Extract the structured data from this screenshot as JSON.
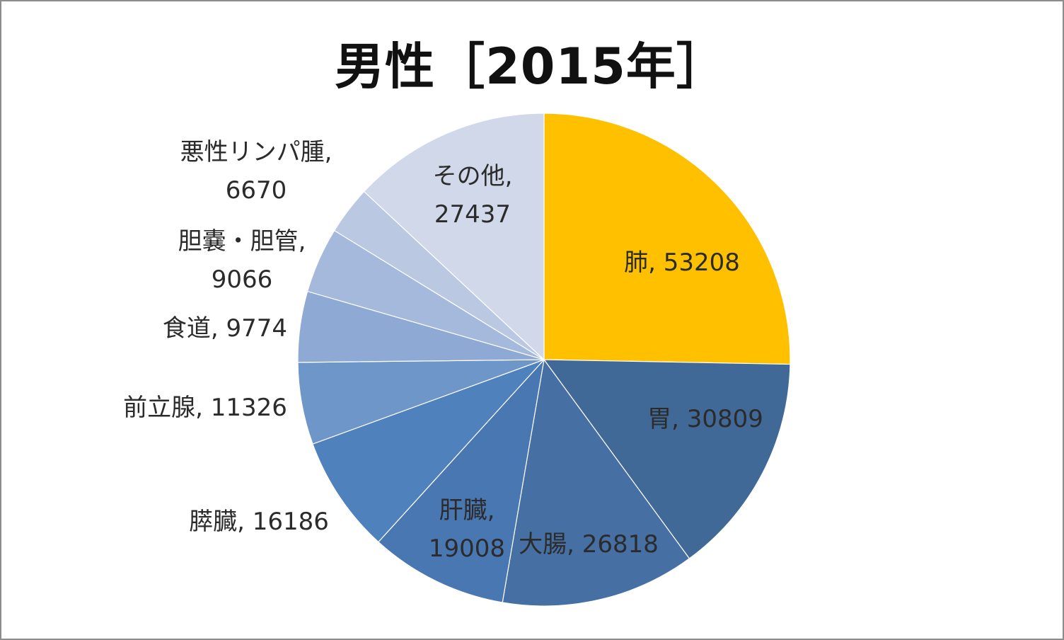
{
  "chart_data": {
    "type": "pie",
    "title": "男性［2015年］",
    "start_angle_deg": 0,
    "direction": "clockwise",
    "slices": [
      {
        "label": "肺",
        "value": 53208,
        "color": "#FFC000",
        "display": [
          "肺, 53208"
        ]
      },
      {
        "label": "胃",
        "value": 30809,
        "color": "#416997",
        "display": [
          "胃, 30809"
        ]
      },
      {
        "label": "大腸",
        "value": 26818,
        "color": "#4670A4",
        "display": [
          "大腸, 26818"
        ]
      },
      {
        "label": "肝臓",
        "value": 19008,
        "color": "#4877B2",
        "display": [
          "肝臓,",
          "19008"
        ]
      },
      {
        "label": "膵臓",
        "value": 16186,
        "color": "#4F81BD",
        "display": [
          "膵臓, 16186"
        ]
      },
      {
        "label": "前立腺",
        "value": 11326,
        "color": "#6F96C9",
        "display": [
          "前立腺, 11326"
        ]
      },
      {
        "label": "食道",
        "value": 9774,
        "color": "#8EA9D4",
        "display": [
          "食道, 9774"
        ]
      },
      {
        "label": "胆嚢・胆管",
        "value": 9066,
        "color": "#A4B9DB",
        "display": [
          "胆嚢・胆管,",
          "9066"
        ]
      },
      {
        "label": "悪性リンパ腫",
        "value": 6670,
        "color": "#BAC8E2",
        "display": [
          "悪性リンパ腫,",
          "6670"
        ]
      },
      {
        "label": "その他",
        "value": 27437,
        "color": "#D0D8EA",
        "display": [
          "その他,",
          "27437"
        ]
      }
    ]
  }
}
